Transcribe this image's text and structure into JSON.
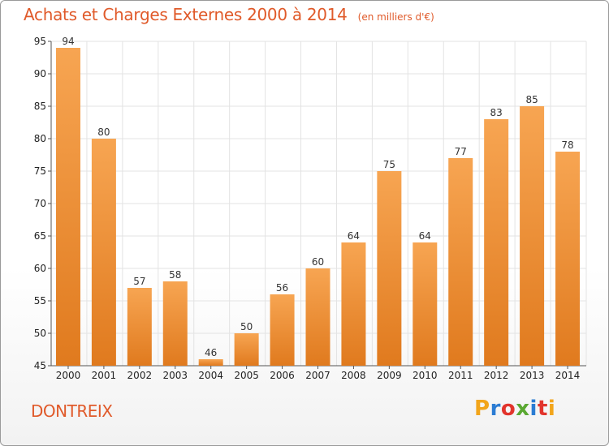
{
  "header": {
    "title": "Achats et Charges Externes 2000 à 2014",
    "unit": "(en milliers d'€)"
  },
  "footer": {
    "commune": "DONTREIX",
    "logo_text": "Proxiti"
  },
  "colors": {
    "bar_light": "#f7a552",
    "bar_dark": "#e07a1e",
    "title": "#e05a2a",
    "grid": "#e3e3e3",
    "logo": [
      "#f2a51b",
      "#2b7cd3",
      "#e2342c",
      "#5aa832",
      "#2b7cd3",
      "#e2342c",
      "#f2a51b"
    ]
  },
  "chart_data": {
    "type": "bar",
    "title": "Achats et Charges Externes 2000 à 2014",
    "subtitle": "(en milliers d'€)",
    "xlabel": "",
    "ylabel": "",
    "categories": [
      "2000",
      "2001",
      "2002",
      "2003",
      "2004",
      "2005",
      "2006",
      "2007",
      "2008",
      "2009",
      "2010",
      "2011",
      "2012",
      "2013",
      "2014"
    ],
    "values": [
      94,
      80,
      57,
      58,
      46,
      50,
      56,
      60,
      64,
      75,
      64,
      77,
      83,
      85,
      78
    ],
    "ylim": [
      45,
      95
    ],
    "yticks": [
      45,
      50,
      55,
      60,
      65,
      70,
      75,
      80,
      85,
      90,
      95
    ],
    "grid": true
  }
}
